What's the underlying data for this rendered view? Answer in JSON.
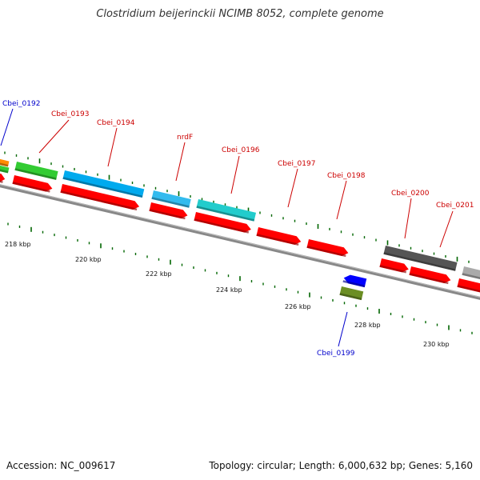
{
  "title": "Clostridium beijerinckii NCIMB 8052, complete genome",
  "footer": {
    "accession": "Accession: NC_009617",
    "topology": "Topology: circular; Length: 6,000,632 bp; Genes: 5,160"
  },
  "colors": {
    "backbone": "#777777",
    "forward_gene": "#ff0000",
    "reverse_gene": "#0000ff",
    "label_forward": "#cc0000",
    "label_reverse": "#0000cc",
    "ticks": "#006600"
  },
  "scale_labels": [
    "218 kbp",
    "220 kbp",
    "222 kbp",
    "224 kbp",
    "226 kbp",
    "228 kbp",
    "230 kbp"
  ],
  "genes": [
    {
      "label": "Cbei_0192",
      "strand": "reverse",
      "color": "#ff8c00"
    },
    {
      "label": "Cbei_0193",
      "strand": "forward",
      "color": "#33cc33"
    },
    {
      "label": "Cbei_0194",
      "strand": "forward",
      "color": "#00aaee"
    },
    {
      "label": "nrdF",
      "strand": "forward",
      "color": "#33bbee"
    },
    {
      "label": "Cbei_0196",
      "strand": "forward",
      "color": "#22cccc"
    },
    {
      "label": "Cbei_0197",
      "strand": "forward",
      "color": "#ff0000"
    },
    {
      "label": "Cbei_0198",
      "strand": "forward",
      "color": "#ff0000"
    },
    {
      "label": "Cbei_0199",
      "strand": "reverse",
      "color": "#0000ff"
    },
    {
      "label": "Cbei_0200",
      "strand": "forward",
      "color": "#555555"
    },
    {
      "label": "Cbei_0201",
      "strand": "forward",
      "color": "#aaaaaa"
    }
  ]
}
